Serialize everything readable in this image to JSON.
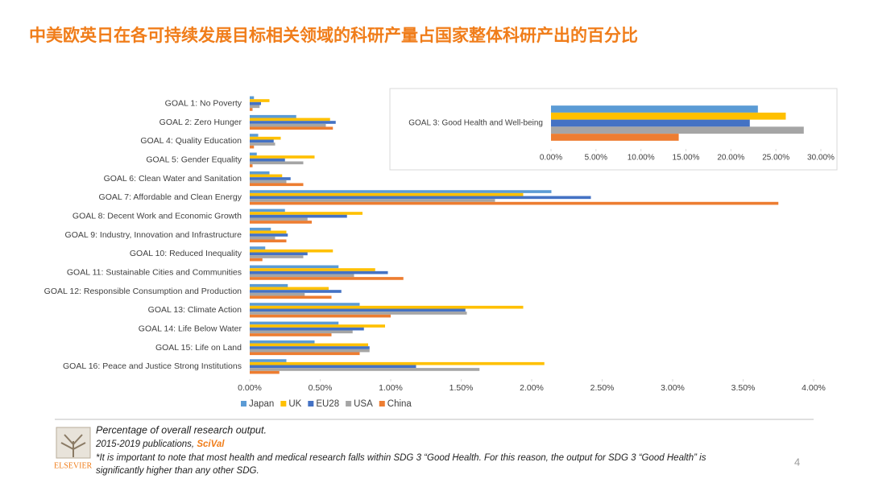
{
  "slide": {
    "title": "中美欧英日在各可持续发展目标相关领域的科研产量占国家整体科研产出的百分比",
    "notes": [
      "Percentage of overall research output.",
      "2015-2019 publications, ",
      "SciVal",
      "*It is important to note that most health and medical research falls within SDG 3 “Good Health. For this reason, the output for SDG 3 “Good Health” is",
      "significantly higher than any other SDG."
    ],
    "logo": "ELSEVIER",
    "page_number": "4"
  },
  "chart_data": [
    {
      "type": "bar",
      "orientation": "horizontal",
      "categories": [
        "GOAL 1: No Poverty",
        "GOAL 2: Zero Hunger",
        "GOAL 4: Quality Education",
        "GOAL 5: Gender Equality",
        "GOAL 6: Clean Water and Sanitation",
        "GOAL 7: Affordable and Clean Energy",
        "GOAL 8: Decent Work and Economic Growth",
        "GOAL 9: Industry, Innovation and Infrastructure",
        "GOAL 10: Reduced Inequality",
        "GOAL 11: Sustainable Cities and Communities",
        "GOAL 12: Responsible Consumption and Production",
        "GOAL 13: Climate Action",
        "GOAL 14: Life Below Water",
        "GOAL 15: Life on Land",
        "GOAL 16: Peace and Justice Strong Institutions"
      ],
      "series": [
        {
          "name": "Japan",
          "color": "#5b9bd5",
          "values": [
            0.03,
            0.33,
            0.06,
            0.05,
            0.14,
            2.14,
            0.25,
            0.15,
            0.11,
            0.63,
            0.27,
            0.78,
            0.63,
            0.46,
            0.26
          ]
        },
        {
          "name": "UK",
          "color": "#ffc000",
          "values": [
            0.14,
            0.57,
            0.22,
            0.46,
            0.23,
            1.94,
            0.8,
            0.26,
            0.59,
            0.89,
            0.56,
            1.94,
            0.96,
            0.84,
            2.09
          ]
        },
        {
          "name": "EU28",
          "color": "#4472c4",
          "values": [
            0.08,
            0.61,
            0.17,
            0.25,
            0.29,
            2.42,
            0.69,
            0.27,
            0.41,
            0.98,
            0.65,
            1.53,
            0.81,
            0.85,
            1.18
          ]
        },
        {
          "name": "USA",
          "color": "#a5a5a5",
          "values": [
            0.07,
            0.54,
            0.18,
            0.38,
            0.26,
            1.74,
            0.41,
            0.18,
            0.38,
            0.74,
            0.39,
            1.54,
            0.73,
            0.85,
            1.63
          ]
        },
        {
          "name": "China",
          "color": "#ed7d31",
          "values": [
            0.02,
            0.59,
            0.03,
            0.02,
            0.38,
            3.75,
            0.44,
            0.26,
            0.09,
            1.09,
            0.58,
            1.0,
            0.58,
            0.78,
            0.21
          ]
        }
      ],
      "xlim": [
        0,
        4
      ],
      "xticks": [
        {
          "value": 0,
          "label": "0.00%"
        },
        {
          "value": 0.5,
          "label": "0.50%"
        },
        {
          "value": 1,
          "label": "1.00%"
        },
        {
          "value": 1.5,
          "label": "1.50%"
        },
        {
          "value": 2,
          "label": "2.00%"
        },
        {
          "value": 2.5,
          "label": "2.50%"
        },
        {
          "value": 3,
          "label": "3.00%"
        },
        {
          "value": 3.5,
          "label": "3.50%"
        },
        {
          "value": 4,
          "label": "4.00%"
        }
      ],
      "legend": "bottom"
    },
    {
      "type": "bar",
      "orientation": "horizontal",
      "categories": [
        "GOAL 3: Good Health and Well-being"
      ],
      "series": [
        {
          "color": "#5b9bd5",
          "values": [
            23.0
          ]
        },
        {
          "color": "#ffc000",
          "values": [
            26.1
          ]
        },
        {
          "color": "#4472c4",
          "values": [
            22.1
          ]
        },
        {
          "color": "#a5a5a5",
          "values": [
            28.1
          ]
        },
        {
          "color": "#ed7d31",
          "values": [
            14.2
          ]
        }
      ],
      "xlim": [
        0,
        30
      ],
      "xticks": [
        {
          "value": 0,
          "label": "0.00%"
        },
        {
          "value": 5,
          "label": "5.00%"
        },
        {
          "value": 10,
          "label": "10.00%"
        },
        {
          "value": 15,
          "label": "15.00%"
        },
        {
          "value": 20,
          "label": "20.00%"
        },
        {
          "value": 25,
          "label": "25.00%"
        },
        {
          "value": 30,
          "label": "30.00%"
        }
      ]
    }
  ]
}
